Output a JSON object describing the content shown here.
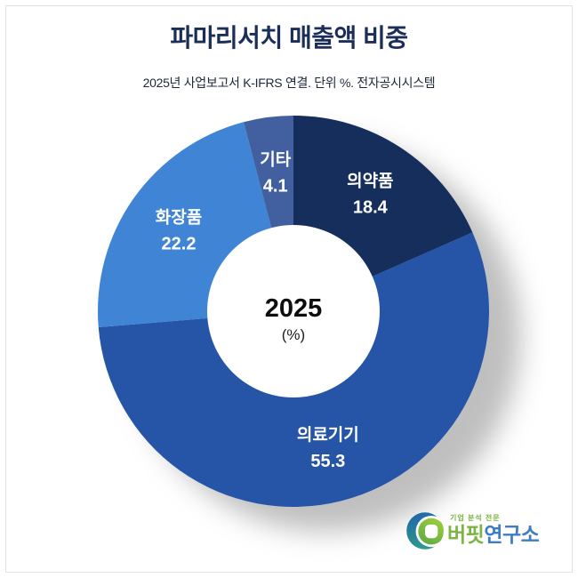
{
  "header": {
    "title": "파마리서치 매출액 비중",
    "subtitle": "2025년 사업보고서 K-IFRS 연결. 단위 %. 전자공시시스템"
  },
  "chart_data": {
    "type": "pie",
    "variant": "donut",
    "title": "파마리서치 매출액 비중",
    "subtitle": "2025년 사업보고서 K-IFRS 연결. 단위 %. 전자공시시스템",
    "unit": "%",
    "center_label": "2025",
    "center_sublabel": "(%)",
    "start_angle_deg": 0,
    "direction": "clockwise",
    "legend_position": "labels-on-slices",
    "slice_label_color": "#ffffff",
    "segments": [
      {
        "label": "의약품",
        "value": 18.4,
        "color": "#142e5c"
      },
      {
        "label": "의료기기",
        "value": 55.3,
        "color": "#2554a7"
      },
      {
        "label": "화장품",
        "value": 22.2,
        "color": "#3f84d6"
      },
      {
        "label": "기타",
        "value": 4.1,
        "color": "#42619f"
      }
    ]
  },
  "logo": {
    "tagline": "기업 분석 전문",
    "name_green": "버핏",
    "name_blue": "연구소",
    "green": "#7cb342",
    "blue": "#3e7cc4",
    "icon_blue_top": "#1f62ab",
    "icon_blue_bottom": "#2f9a8a",
    "icon_green_top": "#9ecf3c",
    "icon_green_bottom": "#5fa944"
  }
}
